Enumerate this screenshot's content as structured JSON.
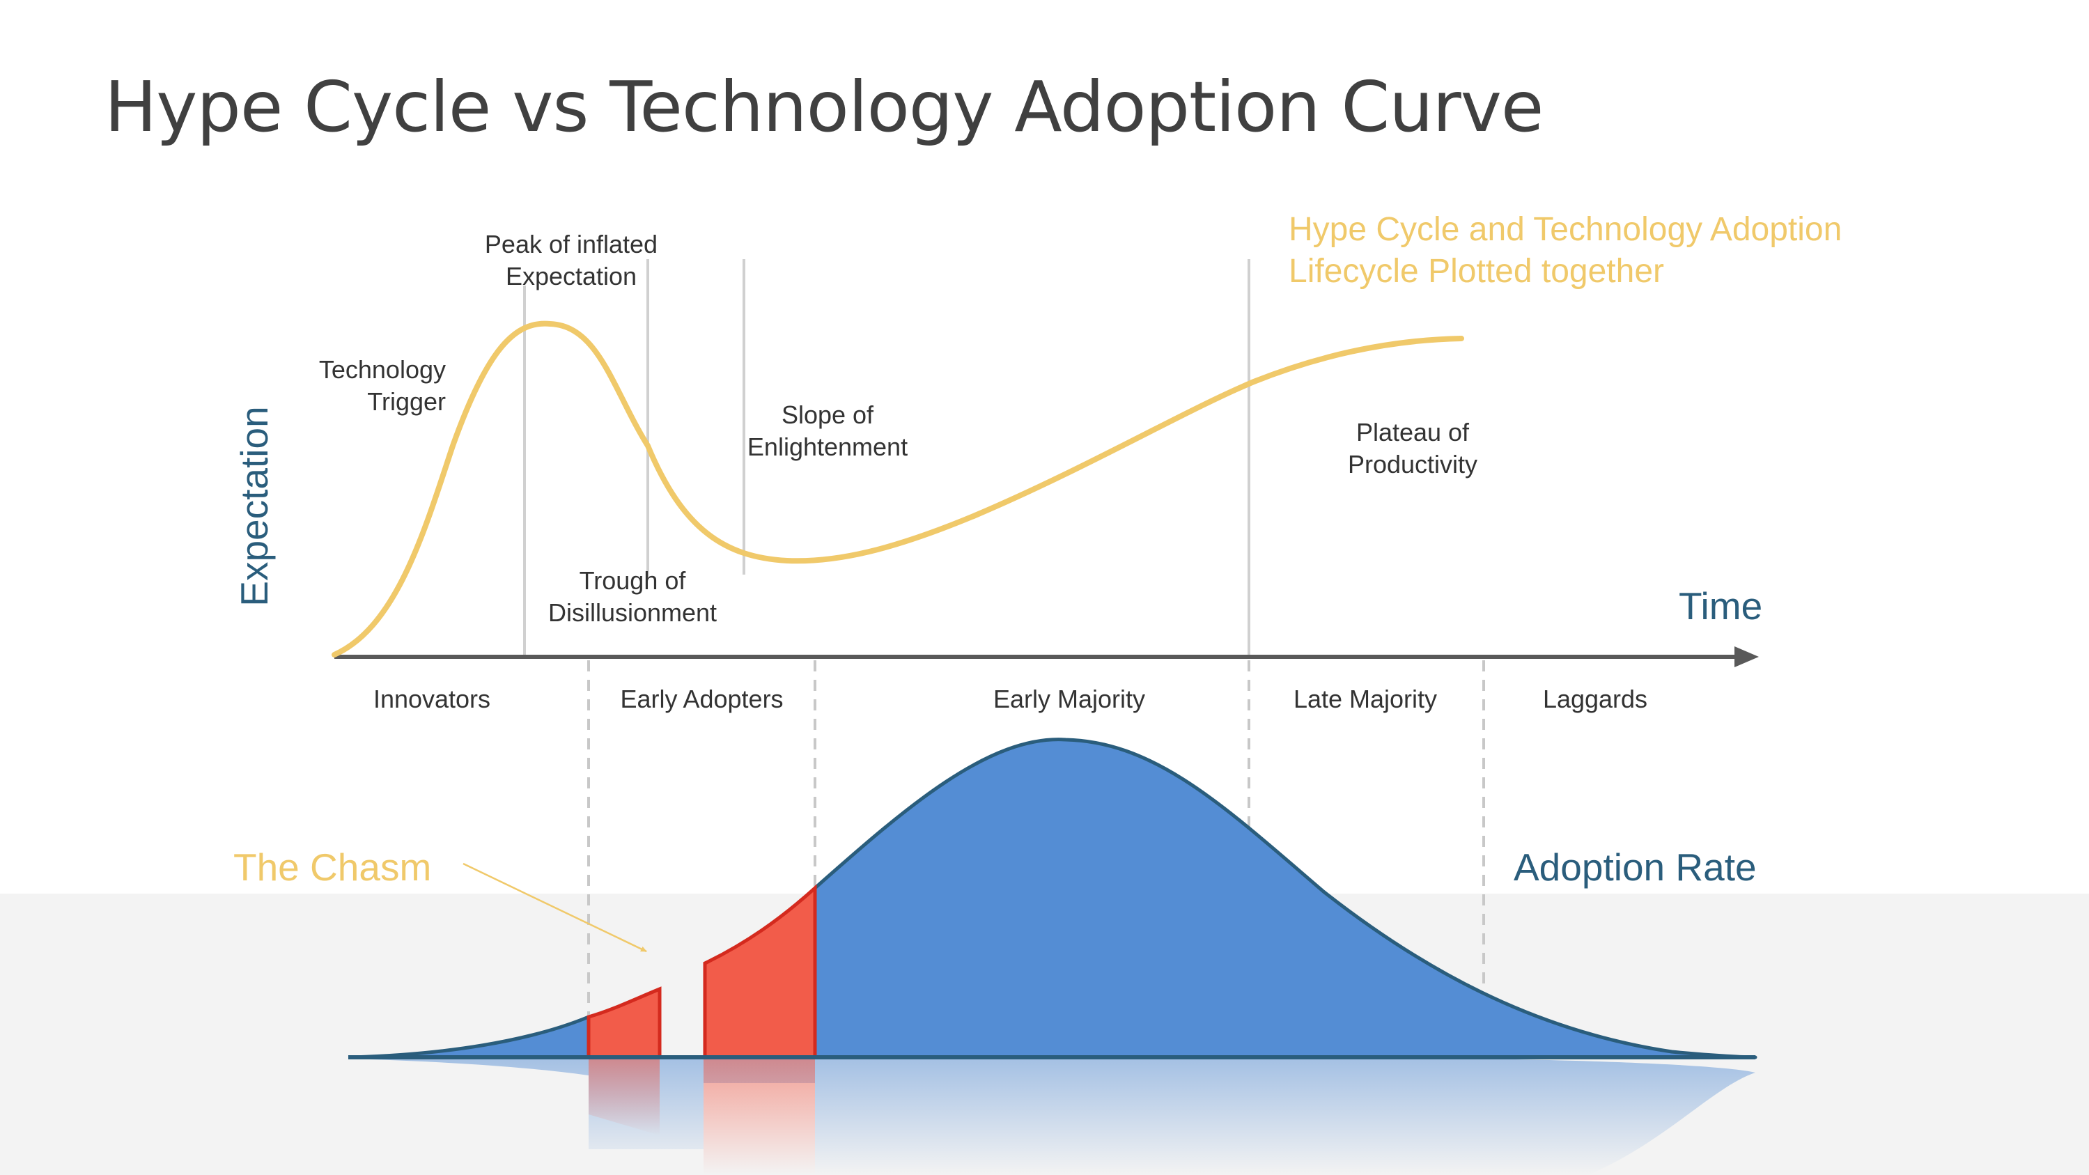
{
  "title": "Hype Cycle vs Technology Adoption Curve",
  "caption": {
    "line1": "Hype Cycle and Technology Adoption",
    "line2": "Lifecycle Plotted together"
  },
  "axes": {
    "y_label": "Expectation",
    "x_label": "Time"
  },
  "hype_phases": {
    "trigger": [
      "Technology",
      "Trigger"
    ],
    "peak": [
      "Peak of inflated",
      "Expectation"
    ],
    "trough": [
      "Trough of",
      "Disillusionment"
    ],
    "slope": [
      "Slope of",
      "Enlightenment"
    ],
    "plateau": [
      "Plateau of",
      "Productivity"
    ]
  },
  "segments": [
    "Innovators",
    "Early Adopters",
    "Early Majority",
    "Late Majority",
    "Laggards"
  ],
  "chasm_label": "The Chasm",
  "adoption_label": "Adoption Rate",
  "colors": {
    "hype_curve": "#f0c96a",
    "bell_fill": "#548dd4",
    "bell_stroke": "#2a5d7c",
    "chasm_fill": "#f25c4a",
    "chasm_stroke": "#d42a1e",
    "axis": "#595959",
    "title": "#404040",
    "accent_blue": "#2a5d7c"
  }
}
